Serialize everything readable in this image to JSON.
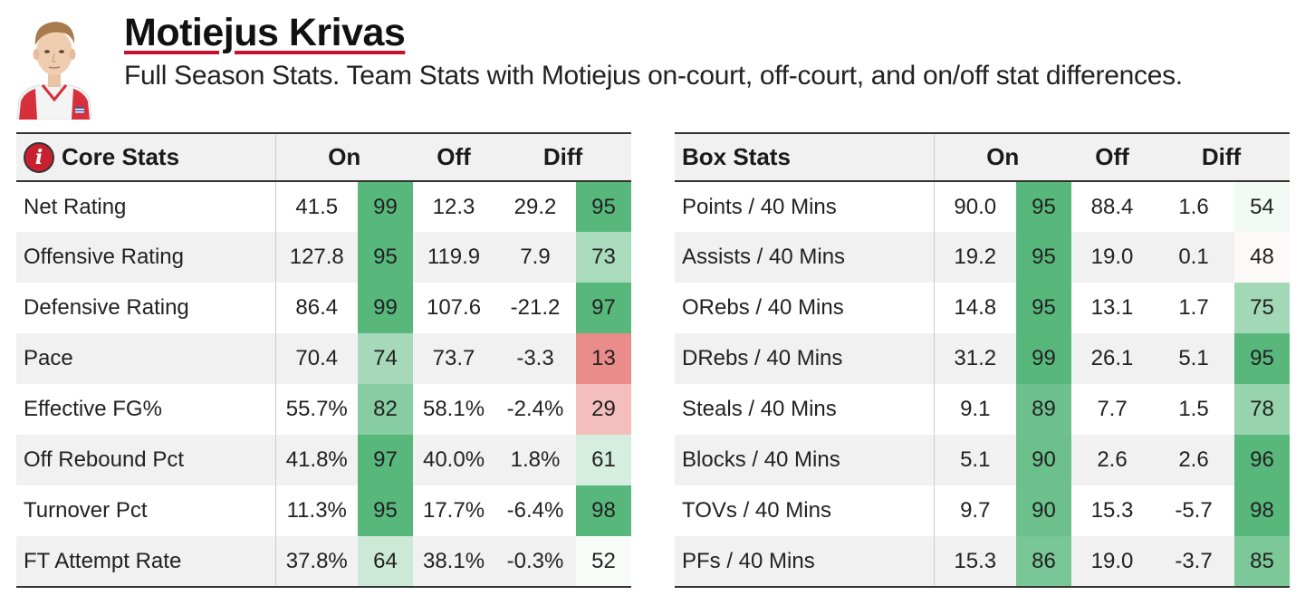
{
  "player": {
    "name": "Motiejus Krivas",
    "subtitle": "Full Season Stats.  Team Stats with Motiejus on-court, off-court, and on/off stat differences."
  },
  "colors": {
    "accent": "#c8102e",
    "pct_high": "#58b87c",
    "pct_mid": "#ffffff",
    "pct_low": "#e8837f"
  },
  "core_stats": {
    "icon": "info-icon",
    "title": "Core Stats",
    "col_on": "On",
    "col_off": "Off",
    "col_diff": "Diff",
    "rows": [
      {
        "label": "Net Rating",
        "on": "41.5",
        "on_pct": 99,
        "off": "12.3",
        "diff": "29.2",
        "diff_pct": 95
      },
      {
        "label": "Offensive Rating",
        "on": "127.8",
        "on_pct": 95,
        "off": "119.9",
        "diff": "7.9",
        "diff_pct": 73
      },
      {
        "label": "Defensive Rating",
        "on": "86.4",
        "on_pct": 99,
        "off": "107.6",
        "diff": "-21.2",
        "diff_pct": 97
      },
      {
        "label": "Pace",
        "on": "70.4",
        "on_pct": 74,
        "off": "73.7",
        "diff": "-3.3",
        "diff_pct": 13
      },
      {
        "label": "Effective FG%",
        "on": "55.7%",
        "on_pct": 82,
        "off": "58.1%",
        "diff": "-2.4%",
        "diff_pct": 29
      },
      {
        "label": "Off Rebound Pct",
        "on": "41.8%",
        "on_pct": 97,
        "off": "40.0%",
        "diff": "1.8%",
        "diff_pct": 61
      },
      {
        "label": "Turnover Pct",
        "on": "11.3%",
        "on_pct": 95,
        "off": "17.7%",
        "diff": "-6.4%",
        "diff_pct": 98
      },
      {
        "label": "FT Attempt Rate",
        "on": "37.8%",
        "on_pct": 64,
        "off": "38.1%",
        "diff": "-0.3%",
        "diff_pct": 52
      }
    ]
  },
  "box_stats": {
    "title": "Box Stats",
    "col_on": "On",
    "col_off": "Off",
    "col_diff": "Diff",
    "rows": [
      {
        "label": "Points / 40 Mins",
        "on": "90.0",
        "on_pct": 95,
        "off": "88.4",
        "diff": "1.6",
        "diff_pct": 54
      },
      {
        "label": "Assists / 40 Mins",
        "on": "19.2",
        "on_pct": 95,
        "off": "19.0",
        "diff": "0.1",
        "diff_pct": 48
      },
      {
        "label": "ORebs / 40 Mins",
        "on": "14.8",
        "on_pct": 95,
        "off": "13.1",
        "diff": "1.7",
        "diff_pct": 75
      },
      {
        "label": "DRebs / 40 Mins",
        "on": "31.2",
        "on_pct": 99,
        "off": "26.1",
        "diff": "5.1",
        "diff_pct": 95
      },
      {
        "label": "Steals / 40 Mins",
        "on": "9.1",
        "on_pct": 89,
        "off": "7.7",
        "diff": "1.5",
        "diff_pct": 78
      },
      {
        "label": "Blocks / 40 Mins",
        "on": "5.1",
        "on_pct": 90,
        "off": "2.6",
        "diff": "2.6",
        "diff_pct": 96
      },
      {
        "label": "TOVs / 40 Mins",
        "on": "9.7",
        "on_pct": 90,
        "off": "15.3",
        "diff": "-5.7",
        "diff_pct": 98
      },
      {
        "label": "PFs / 40 Mins",
        "on": "15.3",
        "on_pct": 86,
        "off": "19.0",
        "diff": "-3.7",
        "diff_pct": 85
      }
    ]
  }
}
